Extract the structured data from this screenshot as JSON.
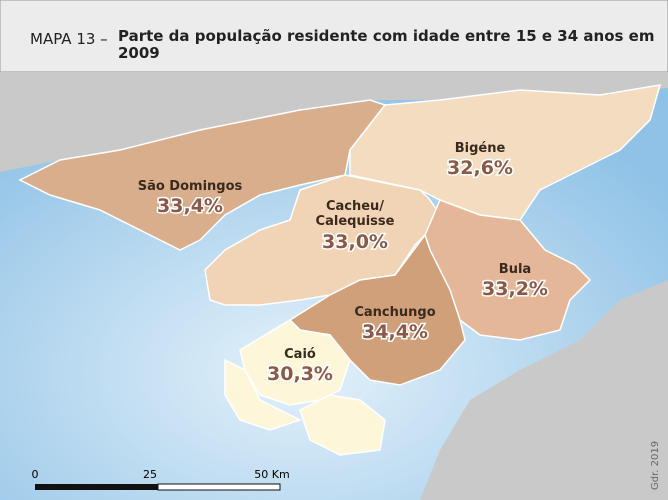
{
  "header": {
    "label": "MAPA 13 –",
    "title": "Parte da população residente com idade entre 15 e 34 anos em 2009"
  },
  "regions": [
    {
      "name": "São Domingos",
      "value": "33,4%"
    },
    {
      "name": "Bigéne",
      "value": "32,6%"
    },
    {
      "name": "Cacheu/ Calequisse",
      "value": "33,0%"
    },
    {
      "name": "Bula",
      "value": "33,2%"
    },
    {
      "name": "Canchungo",
      "value": "34,4%"
    },
    {
      "name": "Caió",
      "value": "30,3%"
    }
  ],
  "scale": {
    "ticks": [
      "0",
      "25",
      "50 Km"
    ]
  },
  "credit": "Gdr. 2019"
}
